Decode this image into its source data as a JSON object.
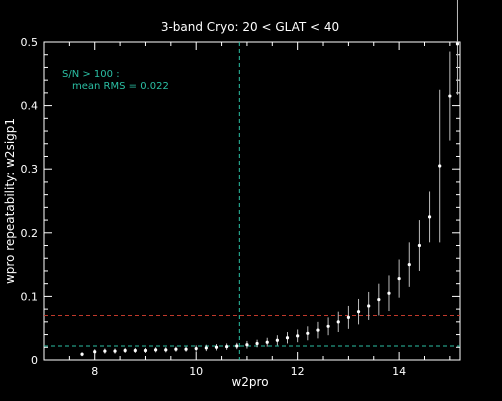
{
  "chart_data": {
    "type": "scatter",
    "title": "3-band Cryo:  20 < GLAT < 40",
    "xlabel": "w2pro",
    "ylabel": "wpro repeatability: w2sigp1",
    "xlim": [
      7.0,
      15.2
    ],
    "ylim": [
      0.0,
      0.5
    ],
    "xticks": [
      8,
      10,
      12,
      14
    ],
    "yticks": [
      0,
      0.1,
      0.2,
      0.3,
      0.4,
      0.5
    ],
    "xtick_labels": [
      "8",
      "10",
      "12",
      "14"
    ],
    "ytick_labels": [
      "0",
      "0.1",
      "0.2",
      "0.3",
      "0.4",
      "0.5"
    ],
    "annotation_line1": "S/N > 100 :",
    "annotation_line2": "mean RMS =  0.022",
    "vertical_line_x": 10.85,
    "reference_lines": [
      {
        "y": 0.07,
        "color": "#c0392b"
      },
      {
        "y": 0.022,
        "color": "#2bbfa4"
      }
    ],
    "colors": {
      "points": "#ffffff",
      "error_bars": "#bdbdbd",
      "annotation": "#2bbfa4",
      "vertical_line": "#2bbfa4"
    },
    "series": [
      {
        "x": [
          7.75,
          8.0,
          8.2,
          8.4,
          8.6,
          8.8,
          9.0,
          9.2,
          9.4,
          9.6,
          9.8,
          10.0,
          10.2,
          10.4,
          10.6,
          10.8,
          11.0,
          11.2,
          11.4,
          11.6,
          11.8,
          12.0,
          12.2,
          12.4,
          12.6,
          12.8,
          13.0,
          13.2,
          13.4,
          13.6,
          13.8,
          14.0,
          14.2,
          14.4,
          14.6,
          14.8,
          15.0,
          15.15
        ],
        "y": [
          0.009,
          0.013,
          0.014,
          0.014,
          0.015,
          0.015,
          0.015,
          0.016,
          0.016,
          0.017,
          0.017,
          0.018,
          0.019,
          0.02,
          0.021,
          0.022,
          0.024,
          0.026,
          0.028,
          0.031,
          0.035,
          0.038,
          0.042,
          0.047,
          0.053,
          0.06,
          0.067,
          0.076,
          0.085,
          0.095,
          0.105,
          0.128,
          0.15,
          0.18,
          0.225,
          0.305,
          0.415,
          0.497
        ],
        "err": [
          0.003,
          0.004,
          0.004,
          0.004,
          0.004,
          0.004,
          0.004,
          0.004,
          0.004,
          0.004,
          0.004,
          0.005,
          0.005,
          0.005,
          0.005,
          0.005,
          0.006,
          0.006,
          0.007,
          0.008,
          0.009,
          0.01,
          0.011,
          0.013,
          0.014,
          0.016,
          0.018,
          0.02,
          0.022,
          0.025,
          0.028,
          0.03,
          0.035,
          0.04,
          0.04,
          0.12,
          0.07,
          0.08
        ]
      }
    ]
  }
}
